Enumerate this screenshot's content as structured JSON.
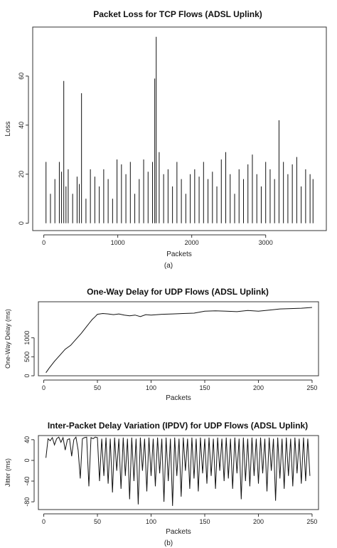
{
  "figure": {
    "caption_a": "(a)",
    "caption_b": "(b)"
  },
  "chart_data": [
    {
      "type": "line",
      "render": "spikes",
      "title": "Packet Loss for TCP Flows (ADSL Uplink)",
      "xlabel": "Packets",
      "ylabel": "Loss",
      "xlim": [
        -150,
        3820
      ],
      "ylim": [
        -3,
        80
      ],
      "xticks": [
        0,
        1000,
        2000,
        3000
      ],
      "yticks": [
        0,
        20,
        40,
        60
      ],
      "series": [
        {
          "x": [
            30,
            90,
            150,
            210,
            240,
            270,
            300,
            330,
            390,
            450,
            480,
            510,
            570,
            630,
            690,
            750,
            810,
            870,
            930,
            990,
            1050,
            1110,
            1170,
            1230,
            1290,
            1350,
            1410,
            1470,
            1500,
            1520,
            1560,
            1620,
            1680,
            1740,
            1800,
            1860,
            1920,
            1980,
            2040,
            2100,
            2160,
            2220,
            2280,
            2340,
            2400,
            2460,
            2520,
            2580,
            2640,
            2700,
            2760,
            2820,
            2880,
            2940,
            3000,
            3060,
            3120,
            3180,
            3240,
            3300,
            3360,
            3420,
            3480,
            3540,
            3600,
            3640
          ],
          "y": [
            25,
            12,
            18,
            25,
            21,
            58,
            15,
            22,
            12,
            19,
            16,
            53,
            10,
            22,
            19,
            15,
            22,
            18,
            10,
            26,
            24,
            20,
            25,
            12,
            18,
            26,
            21,
            25,
            59,
            76,
            29,
            20,
            22,
            15,
            25,
            18,
            12,
            20,
            22,
            19,
            25,
            18,
            21,
            15,
            26,
            29,
            20,
            12,
            22,
            18,
            24,
            28,
            20,
            15,
            25,
            22,
            18,
            42,
            25,
            20,
            24,
            27,
            15,
            22,
            20,
            18
          ]
        }
      ]
    },
    {
      "type": "line",
      "title": "One-Way Delay for UDP Flows (ADSL Uplink)",
      "xlabel": "Packets",
      "ylabel": "One-Way Delay (ms)",
      "xlim": [
        -5,
        256
      ],
      "ylim": [
        0,
        1950
      ],
      "xticks": [
        0,
        50,
        100,
        150,
        200,
        250
      ],
      "yticks": [
        0,
        500,
        1000
      ],
      "series": [
        {
          "x": [
            2,
            5,
            10,
            15,
            20,
            25,
            30,
            35,
            40,
            45,
            48,
            50,
            55,
            60,
            65,
            70,
            75,
            80,
            85,
            90,
            95,
            100,
            110,
            120,
            130,
            140,
            150,
            160,
            170,
            180,
            190,
            200,
            210,
            220,
            230,
            240,
            250
          ],
          "y": [
            80,
            200,
            380,
            540,
            700,
            800,
            960,
            1120,
            1300,
            1480,
            1560,
            1620,
            1640,
            1630,
            1610,
            1630,
            1600,
            1580,
            1600,
            1560,
            1610,
            1600,
            1620,
            1630,
            1640,
            1650,
            1700,
            1710,
            1700,
            1690,
            1720,
            1700,
            1730,
            1760,
            1770,
            1780,
            1800
          ]
        }
      ]
    },
    {
      "type": "line",
      "title": "Inter-Packet Delay Variation (IPDV) for UDP Flows (ADSL Uplink)",
      "xlabel": "Packets",
      "ylabel": "Jitter (ms)",
      "xlim": [
        -5,
        256
      ],
      "ylim": [
        -95,
        48
      ],
      "xticks": [
        0,
        50,
        100,
        150,
        200,
        250
      ],
      "yticks": [
        -80,
        -40,
        0,
        40
      ],
      "series": [
        {
          "x": [
            2,
            4,
            6,
            8,
            10,
            12,
            14,
            16,
            18,
            20,
            22,
            24,
            26,
            28,
            30,
            32,
            34,
            36,
            38,
            40,
            42,
            44,
            46,
            48,
            50,
            52,
            54,
            56,
            58,
            60,
            62,
            64,
            66,
            68,
            70,
            72,
            74,
            76,
            78,
            80,
            82,
            84,
            86,
            88,
            90,
            92,
            94,
            96,
            98,
            100,
            102,
            104,
            106,
            108,
            110,
            112,
            114,
            116,
            118,
            120,
            122,
            124,
            126,
            128,
            130,
            132,
            134,
            136,
            138,
            140,
            142,
            144,
            146,
            148,
            150,
            152,
            154,
            156,
            158,
            160,
            162,
            164,
            166,
            168,
            170,
            172,
            174,
            176,
            178,
            180,
            182,
            184,
            186,
            188,
            190,
            192,
            194,
            196,
            198,
            200,
            202,
            204,
            206,
            208,
            210,
            212,
            214,
            216,
            218,
            220,
            222,
            224,
            226,
            228,
            230,
            232,
            234,
            236,
            238,
            240,
            242,
            244,
            246,
            248
          ],
          "y": [
            5,
            42,
            38,
            44,
            30,
            42,
            45,
            35,
            44,
            20,
            40,
            42,
            8,
            40,
            45,
            20,
            -35,
            42,
            44,
            45,
            -50,
            44,
            42,
            45,
            44,
            -40,
            42,
            -30,
            44,
            -45,
            42,
            -62,
            44,
            -20,
            42,
            -55,
            44,
            -30,
            42,
            -75,
            44,
            -40,
            42,
            -85,
            44,
            -20,
            42,
            -60,
            44,
            -30,
            42,
            -50,
            44,
            -25,
            42,
            -80,
            44,
            -40,
            42,
            -88,
            44,
            -30,
            42,
            -70,
            44,
            -20,
            42,
            -55,
            44,
            -35,
            42,
            -60,
            44,
            -25,
            42,
            -45,
            44,
            -30,
            42,
            -55,
            44,
            -20,
            42,
            -40,
            44,
            -35,
            42,
            -55,
            44,
            -25,
            42,
            -75,
            44,
            -40,
            42,
            -50,
            44,
            -30,
            42,
            -45,
            44,
            -25,
            42,
            -60,
            44,
            -20,
            42,
            -78,
            44,
            -35,
            42,
            -55,
            44,
            -30,
            42,
            -50,
            44,
            -25,
            42,
            -45,
            44,
            -40,
            42,
            -30
          ]
        }
      ]
    }
  ]
}
